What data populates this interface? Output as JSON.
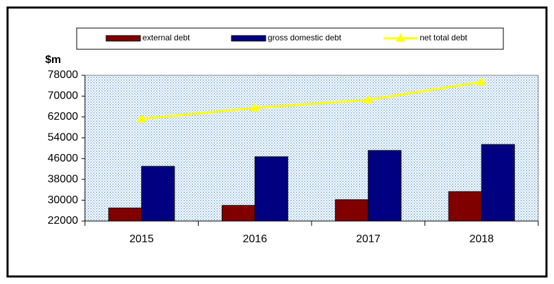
{
  "chart_data": {
    "type": "bar-line",
    "ylabel": "$m",
    "categories": [
      "2015",
      "2016",
      "2017",
      "2018"
    ],
    "series": [
      {
        "name": "external debt",
        "type": "bar",
        "color": "#800000",
        "values": [
          27000,
          28000,
          30200,
          33300
        ]
      },
      {
        "name": "gross domestic debt",
        "type": "bar",
        "color": "#000080",
        "values": [
          43000,
          46700,
          49100,
          51400
        ]
      },
      {
        "name": "net total debt",
        "type": "line",
        "color": "#ffff00",
        "values": [
          61200,
          65400,
          68500,
          75400
        ]
      }
    ],
    "ylim": [
      22000,
      78000
    ],
    "yticks": [
      22000,
      30000,
      38000,
      46000,
      54000,
      62000,
      70000,
      78000
    ],
    "legend": "top"
  }
}
